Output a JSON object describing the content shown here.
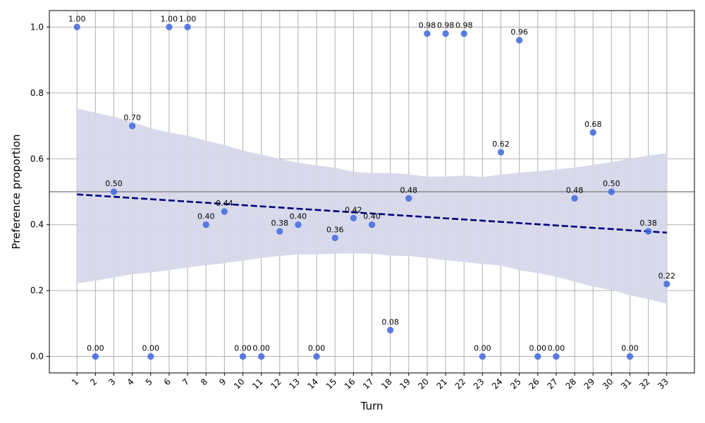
{
  "chart_data": {
    "type": "scatter",
    "title": "",
    "xlabel": "Turn",
    "ylabel": "Preference proportion",
    "x": [
      1,
      2,
      3,
      4,
      5,
      6,
      7,
      8,
      9,
      10,
      11,
      12,
      13,
      14,
      15,
      16,
      17,
      18,
      19,
      20,
      21,
      22,
      23,
      24,
      25,
      26,
      27,
      28,
      29,
      30,
      31,
      32,
      33
    ],
    "y": [
      1.0,
      0.0,
      0.5,
      0.7,
      0.0,
      1.0,
      1.0,
      0.4,
      0.44,
      0.0,
      0.0,
      0.38,
      0.4,
      0.0,
      0.36,
      0.42,
      0.4,
      0.08,
      0.48,
      0.98,
      0.98,
      0.98,
      0.0,
      0.62,
      0.96,
      0.0,
      0.0,
      0.48,
      0.68,
      0.5,
      0.0,
      0.38,
      0.22
    ],
    "point_labels": [
      "1.00",
      "0.00",
      "0.50",
      "0.70",
      "0.00",
      "1.00",
      "1.00",
      "0.40",
      "0.44",
      "0.00",
      "0.00",
      "0.38",
      "0.40",
      "0.00",
      "0.36",
      "0.42",
      "0.40",
      "0.08",
      "0.48",
      "0.98",
      "0.98",
      "0.98",
      "0.00",
      "0.62",
      "0.96",
      "0.00",
      "0.00",
      "0.48",
      "0.68",
      "0.50",
      "0.00",
      "0.38",
      "0.22"
    ],
    "x_tick_labels": [
      "1",
      "2",
      "3",
      "4",
      "5",
      "6",
      "7",
      "8",
      "9",
      "10",
      "11",
      "12",
      "13",
      "14",
      "15",
      "16",
      "17",
      "18",
      "19",
      "20",
      "21",
      "22",
      "23",
      "24",
      "25",
      "26",
      "27",
      "28",
      "29",
      "30",
      "31",
      "32",
      "33"
    ],
    "y_ticks": [
      0.0,
      0.2,
      0.4,
      0.6,
      0.8,
      1.0
    ],
    "y_tick_labels": [
      "0.0",
      "0.2",
      "0.4",
      "0.6",
      "0.8",
      "1.0"
    ],
    "xlim": [
      -0.5,
      34.5
    ],
    "ylim": [
      -0.05,
      1.05
    ],
    "trend_line": {
      "start": [
        1,
        0.492
      ],
      "end": [
        33,
        0.376
      ],
      "color": "#00007f",
      "style": "dashed"
    },
    "confidence_band": {
      "x": [
        1,
        2,
        3,
        4,
        5,
        6,
        7,
        8,
        9,
        10,
        11,
        12,
        13,
        14,
        15,
        16,
        17,
        18,
        19,
        20,
        21,
        22,
        23,
        24,
        25,
        26,
        27,
        28,
        29,
        30,
        31,
        32,
        33
      ],
      "upper": [
        0.752,
        0.74,
        0.728,
        0.712,
        0.693,
        0.68,
        0.67,
        0.655,
        0.642,
        0.625,
        0.613,
        0.6,
        0.588,
        0.58,
        0.573,
        0.56,
        0.557,
        0.557,
        0.553,
        0.546,
        0.546,
        0.549,
        0.545,
        0.552,
        0.558,
        0.562,
        0.568,
        0.573,
        0.582,
        0.59,
        0.6,
        0.61,
        0.617
      ],
      "lower": [
        0.222,
        0.23,
        0.24,
        0.25,
        0.255,
        0.262,
        0.27,
        0.277,
        0.283,
        0.291,
        0.299,
        0.305,
        0.31,
        0.31,
        0.312,
        0.313,
        0.312,
        0.306,
        0.305,
        0.299,
        0.292,
        0.287,
        0.281,
        0.276,
        0.262,
        0.253,
        0.242,
        0.227,
        0.212,
        0.202,
        0.186,
        0.174,
        0.16
      ],
      "color": "#d6d8ea"
    },
    "reference_line": {
      "y": 0.5,
      "color": "#8a8a8a"
    },
    "point_color": "#4169e1",
    "grid": true
  }
}
